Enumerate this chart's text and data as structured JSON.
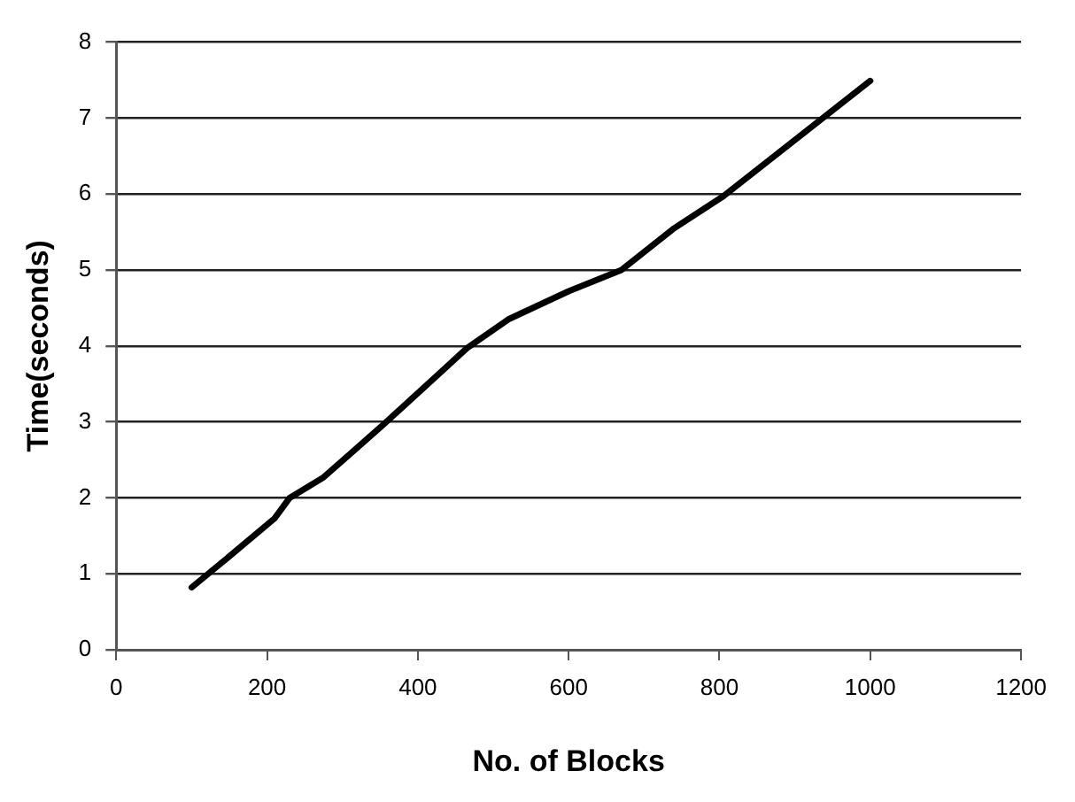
{
  "chart_data": {
    "type": "line",
    "xlabel": "No. of Blocks",
    "ylabel": "Time(seconds)",
    "x": [
      100,
      150,
      210,
      230,
      275,
      355,
      465,
      520,
      600,
      670,
      740,
      805,
      1000
    ],
    "series": [
      {
        "color": "#000000",
        "values": [
          0.82,
          1.23,
          1.73,
          2.0,
          2.27,
          2.97,
          3.97,
          4.35,
          4.72,
          5.0,
          5.55,
          5.97,
          7.49
        ]
      }
    ],
    "xlim": [
      0,
      1200
    ],
    "xticks": [
      0,
      200,
      400,
      600,
      800,
      1000,
      1200
    ],
    "ylim": [
      0,
      8
    ],
    "yticks": [
      0,
      1,
      2,
      3,
      4,
      5,
      6,
      7,
      8
    ],
    "grid": "y",
    "legend": false,
    "marker": "none",
    "line_style": "solid"
  }
}
